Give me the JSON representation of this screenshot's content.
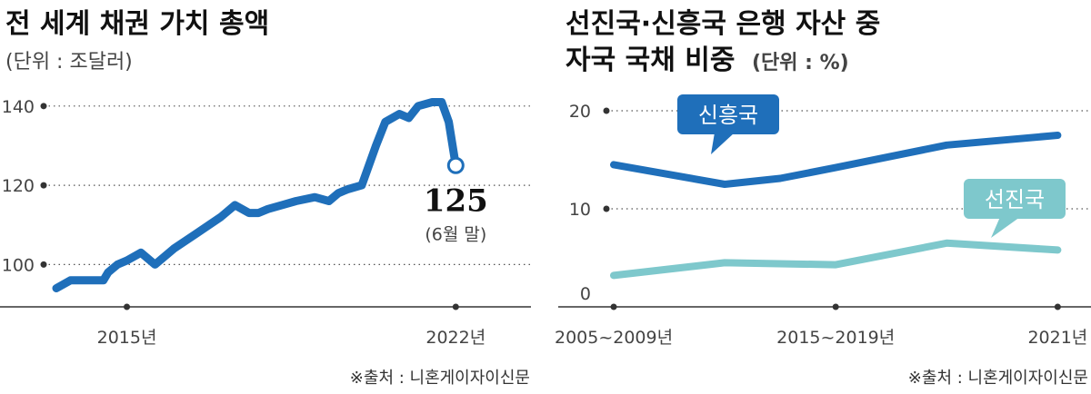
{
  "colors": {
    "dark_blue": "#1f6fba",
    "light_teal": "#7ec8cc",
    "axis": "#333333",
    "grid": "#555555"
  },
  "chart_data": [
    {
      "type": "line",
      "title": "전 세계 채권 가치 총액",
      "unit_note": "(단위 : 조달러)",
      "y_ticks": [
        100,
        120,
        140
      ],
      "ylim": [
        90,
        145
      ],
      "x_ticks": [
        {
          "label": "2015년",
          "x": 2015
        },
        {
          "label": "2022년",
          "x": 2022
        }
      ],
      "xlim": [
        2012.3,
        2023.6
      ],
      "grid": true,
      "series": [
        {
          "color": "#1f6fba",
          "x": [
            2013.5,
            2013.8,
            2014.0,
            2014.5,
            2014.6,
            2014.8,
            2015.0,
            2015.3,
            2015.6,
            2016.0,
            2016.5,
            2017.0,
            2017.3,
            2017.6,
            2017.8,
            2018.0,
            2018.3,
            2018.6,
            2019.0,
            2019.3,
            2019.5,
            2019.7,
            2020.0,
            2020.3,
            2020.5,
            2020.8,
            2021.0,
            2021.2,
            2021.5,
            2021.7,
            2021.85,
            2022.0
          ],
          "y": [
            94,
            96,
            96,
            96,
            98,
            100,
            101,
            103,
            100,
            104,
            108,
            112,
            115,
            113,
            113,
            114,
            115,
            116,
            117,
            116,
            118,
            119,
            120,
            130,
            136,
            138,
            137,
            140,
            141,
            141,
            136,
            125
          ]
        }
      ],
      "annotation": {
        "value": "125",
        "note": "(6월 말)",
        "x": 2022,
        "y": 125
      },
      "source": "※출처 : 니혼게이자이신문"
    },
    {
      "type": "line",
      "title_line1": "선진국·신흥국 은행 자산 중",
      "title_line2": "자국 국채 비중",
      "unit_note": "(단위 : %)",
      "y_ticks": [
        0,
        10,
        20
      ],
      "ylim": [
        0,
        22
      ],
      "x_ticks": [
        {
          "label": "2005~2009년",
          "x": 0
        },
        {
          "label": "2015~2019년",
          "x": 2
        },
        {
          "label": "2021년",
          "x": 4
        }
      ],
      "xlim": [
        -0.5,
        4.3
      ],
      "grid": true,
      "series": [
        {
          "name": "신흥국",
          "color": "#1f6fba",
          "x": [
            0,
            1,
            1.5,
            2,
            3,
            4
          ],
          "y": [
            14.5,
            12.5,
            13.1,
            14.2,
            16.5,
            17.5
          ]
        },
        {
          "name": "선진국",
          "color": "#7ec8cc",
          "x": [
            0,
            1,
            2,
            3,
            4
          ],
          "y": [
            3.2,
            4.5,
            4.3,
            6.5,
            5.8
          ]
        }
      ],
      "source": "※출처 : 니혼게이자이신문"
    }
  ]
}
